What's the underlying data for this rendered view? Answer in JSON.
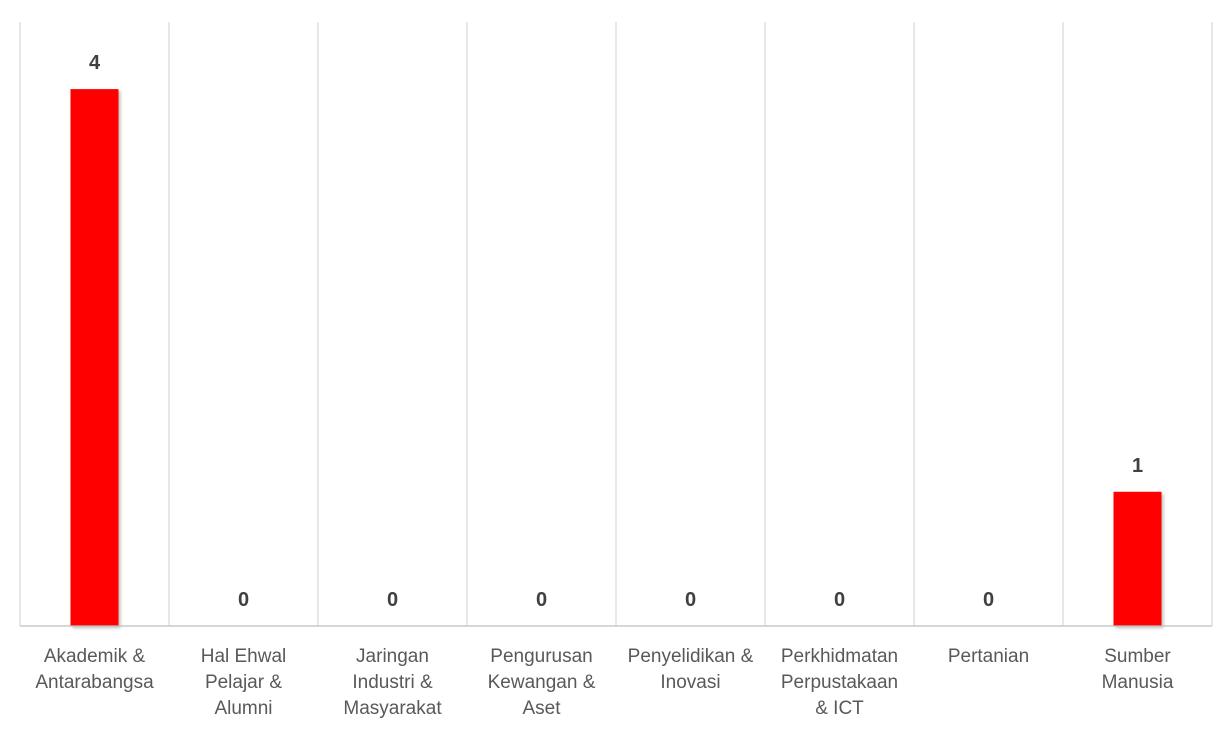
{
  "chart_data": {
    "type": "bar",
    "categories": [
      [
        "Akademik &",
        "Antarabangsa"
      ],
      [
        "Hal Ehwal",
        "Pelajar &",
        "Alumni"
      ],
      [
        "Jaringan",
        "Industri &",
        "Masyarakat"
      ],
      [
        "Pengurusan",
        "Kewangan &",
        "Aset"
      ],
      [
        "Penyelidikan &",
        "Inovasi"
      ],
      [
        "Perkhidmatan",
        "Perpustakaan",
        "& ICT"
      ],
      [
        "Pertanian"
      ],
      [
        "Sumber",
        "Manusia"
      ]
    ],
    "values": [
      4,
      0,
      0,
      0,
      0,
      0,
      0,
      1
    ],
    "data_labels": [
      "4",
      "0",
      "0",
      "0",
      "0",
      "0",
      "0",
      "1"
    ],
    "ylim": [
      0,
      4.5
    ],
    "bar_color": "#ff0000",
    "grid": "vertical",
    "legend": "none"
  }
}
